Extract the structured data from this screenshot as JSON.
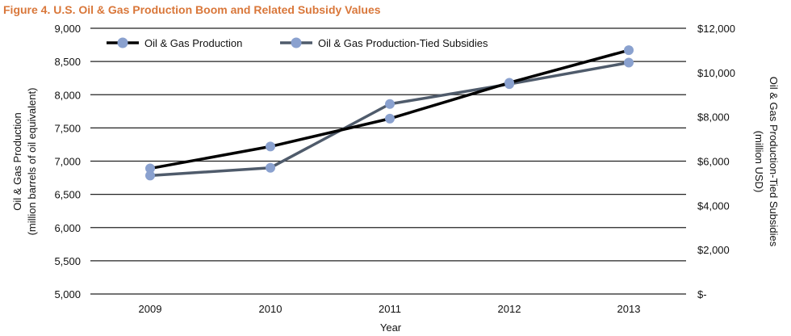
{
  "figure_title": "Figure 4. U.S. Oil & Gas Production Boom and Related Subsidy Values",
  "colors": {
    "title": "#d9773a",
    "production_line": "#000000",
    "subsidy_line": "#4f5b6b",
    "marker": "#8aa1cf",
    "grid": "#222222"
  },
  "chart_data": {
    "type": "line",
    "title": "Figure 4. U.S. Oil & Gas Production Boom and Related Subsidy Values",
    "xlabel": "Year",
    "categories": [
      "2009",
      "2010",
      "2011",
      "2012",
      "2013"
    ],
    "y_left": {
      "label_line1": "Oil & Gas Production",
      "label_line2": "(million barrels of oil equivalent)",
      "lim": [
        5000,
        9000
      ],
      "ticks": [
        5000,
        5500,
        6000,
        6500,
        7000,
        7500,
        8000,
        8500,
        9000
      ],
      "tick_labels": [
        "5,000",
        "5,500",
        "6,000",
        "6,500",
        "7,000",
        "7,500",
        "8,000",
        "8,500",
        "9,000"
      ]
    },
    "y_right": {
      "label_line1": "Oil & Gas Production-Tied Subsidies",
      "label_line2": "(million USD)",
      "lim": [
        0,
        12000
      ],
      "ticks": [
        0,
        2000,
        4000,
        6000,
        8000,
        10000,
        12000
      ],
      "tick_labels": [
        "$-",
        "$2,000",
        "$4,000",
        "$6,000",
        "$8,000",
        "$10,000",
        "$12,000"
      ]
    },
    "series": [
      {
        "name": "Oil & Gas Production",
        "axis": "left",
        "values": [
          6890,
          7220,
          7640,
          8180,
          8670
        ]
      },
      {
        "name": "Oil & Gas Production-Tied Subsidies",
        "axis": "right",
        "values": [
          5350,
          5700,
          8580,
          9480,
          10450
        ]
      }
    ],
    "grid": "horizontal",
    "legend_position": "top-left"
  }
}
